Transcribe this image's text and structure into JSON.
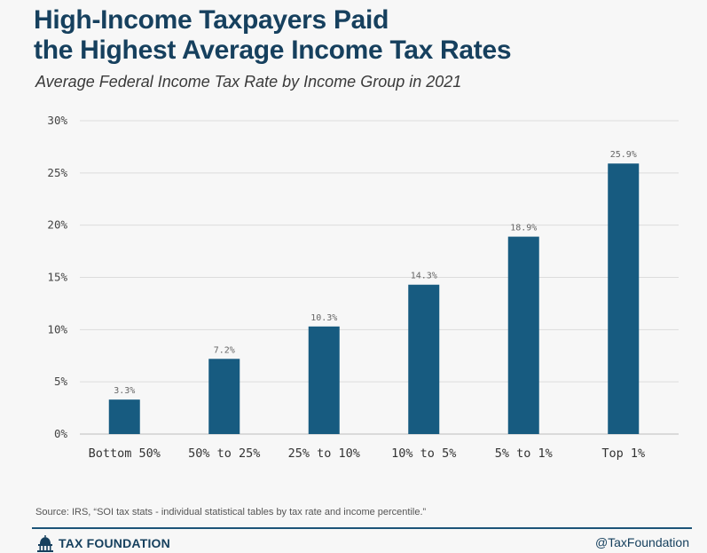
{
  "header": {
    "title_line1": "High-Income Taxpayers Paid",
    "title_line2": "the Highest Average Income Tax Rates",
    "subtitle": "Average Federal Income Tax Rate by Income Group in 2021"
  },
  "chart_data": {
    "type": "bar",
    "categories": [
      "Bottom 50%",
      "50% to 25%",
      "25% to 10%",
      "10% to 5%",
      "5% to 1%",
      "Top 1%"
    ],
    "values": [
      3.3,
      7.2,
      10.3,
      14.3,
      18.9,
      25.9
    ],
    "value_labels": [
      "3.3%",
      "7.2%",
      "10.3%",
      "14.3%",
      "18.9%",
      "25.9%"
    ],
    "title": "High-Income Taxpayers Paid the Highest Average Income Tax Rates",
    "subtitle": "Average Federal Income Tax Rate by Income Group in 2021",
    "xlabel": "",
    "ylabel": "",
    "ylim": [
      0,
      30
    ],
    "yticks": [
      0,
      5,
      10,
      15,
      20,
      25,
      30
    ],
    "ytick_labels": [
      "0%",
      "5%",
      "10%",
      "15%",
      "20%",
      "25%",
      "30%"
    ],
    "grid": true,
    "bar_color": "#175b80"
  },
  "footer": {
    "source": "Source: IRS, “SOI tax stats - individual statistical tables by tax rate and income percentile.”",
    "logo_text": "TAX FOUNDATION",
    "logo_icon": "capitol-dome-icon",
    "handle": "@TaxFoundation"
  },
  "colors": {
    "title": "#16405e",
    "bar": "#175b80",
    "grid": "#dcdcdc",
    "background": "#f7f7f7"
  }
}
